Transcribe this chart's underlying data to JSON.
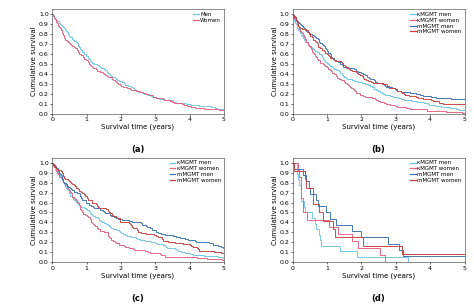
{
  "fig_width": 4.74,
  "fig_height": 3.05,
  "dpi": 100,
  "background": "#ffffff",
  "panel_titles": [
    "(a)",
    "(b)",
    "(c)",
    "(d)"
  ],
  "xlabel": "Survival time (years)",
  "ylabel": "Cumulative survival",
  "xlim": [
    0,
    5
  ],
  "ylim": [
    0.0,
    1.05
  ],
  "yticks": [
    0.0,
    0.1,
    0.2,
    0.3,
    0.4,
    0.5,
    0.6,
    0.7,
    0.8,
    0.9,
    1.0
  ],
  "xticks": [
    0,
    1,
    2,
    3,
    4,
    5
  ],
  "tick_fontsize": 4.5,
  "label_fontsize": 5.0,
  "legend_fontsize": 4.0,
  "title_fontsize": 6.0,
  "panel_configs": [
    {
      "curves": [
        {
          "median": 1.1,
          "color": "#6ec6e8",
          "seed": 1,
          "n": 300,
          "lw": 0.7
        },
        {
          "median": 1.0,
          "color": "#e06080",
          "seed": 2,
          "n": 280,
          "lw": 0.7
        }
      ],
      "legend": [
        {
          "label": "Men",
          "color": "#6ec6e8"
        },
        {
          "label": "Women",
          "color": "#e06080"
        }
      ]
    },
    {
      "curves": [
        {
          "median": 1.0,
          "color": "#6ec6e8",
          "seed": 3,
          "n": 250,
          "lw": 0.7
        },
        {
          "median": 0.95,
          "color": "#e06080",
          "seed": 4,
          "n": 220,
          "lw": 0.7
        },
        {
          "median": 1.6,
          "color": "#3a72b0",
          "seed": 5,
          "n": 180,
          "lw": 0.7
        },
        {
          "median": 1.5,
          "color": "#c84040",
          "seed": 6,
          "n": 160,
          "lw": 0.7
        }
      ],
      "legend": [
        {
          "label": "κMGMT men",
          "color": "#6ec6e8"
        },
        {
          "label": "κMGMT women",
          "color": "#e06080"
        },
        {
          "label": "mMGMT men",
          "color": "#3a72b0"
        },
        {
          "label": "mMGMT women",
          "color": "#c84040"
        }
      ]
    },
    {
      "curves": [
        {
          "median": 1.05,
          "color": "#6ec6e8",
          "seed": 7,
          "n": 200,
          "lw": 0.7
        },
        {
          "median": 1.0,
          "color": "#e06080",
          "seed": 8,
          "n": 180,
          "lw": 0.7
        },
        {
          "median": 1.7,
          "color": "#3a72b0",
          "seed": 9,
          "n": 140,
          "lw": 0.7
        },
        {
          "median": 1.65,
          "color": "#c84040",
          "seed": 10,
          "n": 120,
          "lw": 0.7
        }
      ],
      "legend": [
        {
          "label": "κMGMT men",
          "color": "#6ec6e8"
        },
        {
          "label": "κMGMT women",
          "color": "#e06080"
        },
        {
          "label": "mMGMT men",
          "color": "#3a72b0"
        },
        {
          "label": "mMGMT women",
          "color": "#c84040"
        }
      ]
    },
    {
      "curves": [
        {
          "median": 0.55,
          "color": "#6ec6e8",
          "seed": 11,
          "n": 18,
          "lw": 0.7
        },
        {
          "median": 0.5,
          "color": "#e06080",
          "seed": 12,
          "n": 14,
          "lw": 0.7
        },
        {
          "median": 1.3,
          "color": "#3a72b0",
          "seed": 13,
          "n": 16,
          "lw": 0.7
        },
        {
          "median": 1.5,
          "color": "#c84040",
          "seed": 14,
          "n": 12,
          "lw": 0.7
        }
      ],
      "legend": [
        {
          "label": "κMGMT men",
          "color": "#6ec6e8"
        },
        {
          "label": "κMGMT women",
          "color": "#e06080"
        },
        {
          "label": "mMGMT men",
          "color": "#3a72b0"
        },
        {
          "label": "mMGMT women",
          "color": "#c84040"
        }
      ]
    }
  ]
}
